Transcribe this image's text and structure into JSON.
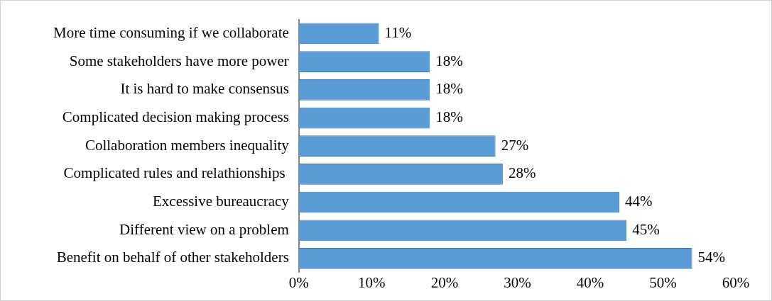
{
  "chart_data": {
    "type": "bar",
    "orientation": "horizontal",
    "categories": [
      "More time consuming if we collaborate",
      "Some stakeholders have more power",
      "It is hard to make consensus",
      "Complicated decision making process",
      "Collaboration members inequality",
      "Complicated rules and relathionships ",
      "Excessive bureaucracy",
      "Different view on a problem",
      "Benefit on behalf of other stakeholders"
    ],
    "values": [
      11,
      18,
      18,
      18,
      27,
      28,
      44,
      45,
      54
    ],
    "value_labels": [
      "11%",
      "18%",
      "18%",
      "18%",
      "27%",
      "28%",
      "44%",
      "45%",
      "54%"
    ],
    "color": "#5b9bd5",
    "xlim": [
      0,
      60
    ],
    "xticks": [
      {
        "value": 0,
        "label": "0%"
      },
      {
        "value": 10,
        "label": "10%"
      },
      {
        "value": 20,
        "label": "20%"
      },
      {
        "value": 30,
        "label": "30%"
      },
      {
        "value": 40,
        "label": "40%"
      },
      {
        "value": 50,
        "label": "50%"
      },
      {
        "value": 60,
        "label": "60%"
      }
    ],
    "grid": false,
    "legend": false
  }
}
